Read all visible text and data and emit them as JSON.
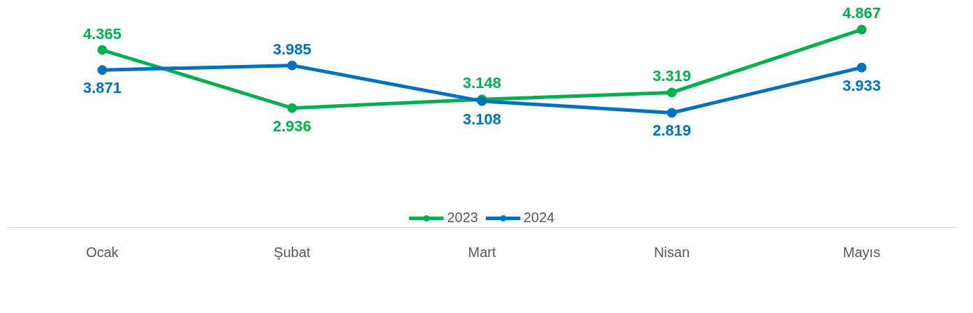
{
  "chart_data": {
    "type": "line",
    "categories": [
      "Ocak",
      "Şubat",
      "Mart",
      "Nisan",
      "Mayıs"
    ],
    "series": [
      {
        "name": "2023",
        "color": "#00b050",
        "values": [
          4.365,
          2.936,
          3.148,
          3.319,
          4.867
        ]
      },
      {
        "name": "2024",
        "color": "#0070c0",
        "values": [
          3.871,
          3.985,
          3.108,
          2.819,
          3.933
        ]
      }
    ],
    "data_labels": true,
    "legend": "bottom",
    "grid": false,
    "marker": "circle",
    "line_style": "solid"
  }
}
